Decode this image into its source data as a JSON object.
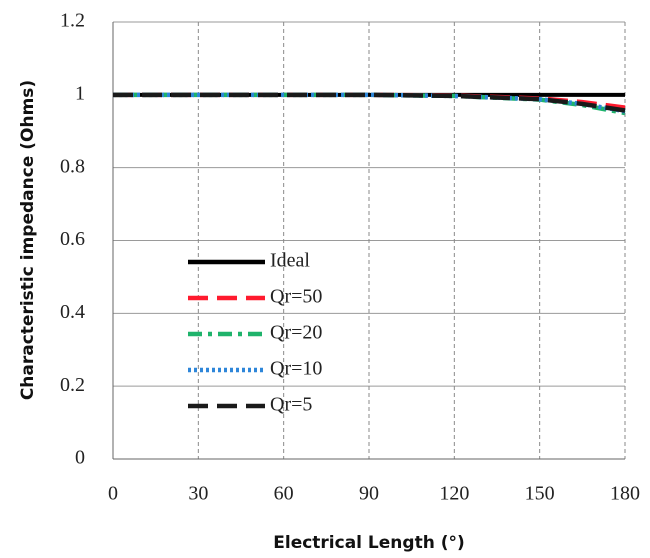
{
  "chart_data": {
    "type": "line",
    "xlabel": "Electrical Length (°)",
    "ylabel": "Characteristic impedance (Ohms)",
    "x": [
      0,
      30,
      60,
      90,
      120,
      150,
      165,
      180
    ],
    "series": [
      {
        "name": "Ideal",
        "color": "#000000",
        "style": "solid",
        "values": [
          1,
          1,
          1,
          1,
          1,
          1,
          1,
          1
        ]
      },
      {
        "name": "Qr=50",
        "color": "#ff1a2e",
        "style": "dashed",
        "values": [
          1,
          1,
          1,
          1,
          0.998,
          0.99,
          0.98,
          0.965
        ]
      },
      {
        "name": "Qr=20",
        "color": "#1fb36b",
        "style": "dashdot",
        "values": [
          1,
          1,
          1,
          1,
          0.997,
          0.987,
          0.972,
          0.95
        ]
      },
      {
        "name": "Qr=10",
        "color": "#2e86d9",
        "style": "dotted",
        "values": [
          1,
          1,
          1,
          1,
          0.997,
          0.988,
          0.975,
          0.955
        ]
      },
      {
        "name": "Qr=5",
        "color": "#1a1a1a",
        "style": "dashed",
        "values": [
          1,
          1,
          1,
          1,
          0.997,
          0.988,
          0.975,
          0.957
        ]
      }
    ],
    "xlim": [
      0,
      180
    ],
    "xticks": [
      0,
      30,
      60,
      90,
      120,
      150,
      180
    ],
    "ylim": [
      0,
      1.2
    ],
    "yticks": [
      0,
      0.2,
      0.4,
      0.6,
      0.8,
      1,
      1.2
    ],
    "grid": true,
    "legend": "center left"
  }
}
